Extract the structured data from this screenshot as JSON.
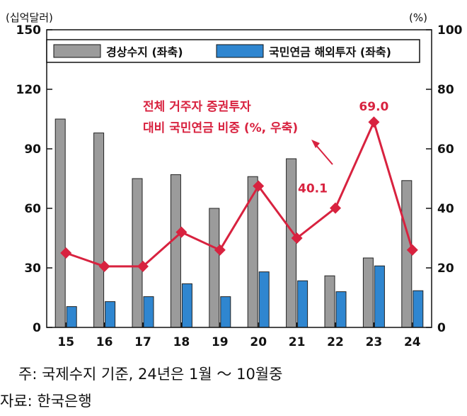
{
  "chart_data": {
    "type": "bar+line",
    "categories": [
      "15",
      "16",
      "17",
      "18",
      "19",
      "20",
      "21",
      "22",
      "23",
      "24"
    ],
    "series": [
      {
        "name": "경상수지 (좌축)",
        "type": "bar",
        "axis": "left",
        "color": "#9b9b9b",
        "values": [
          105,
          98,
          75,
          77,
          60,
          76,
          85,
          26,
          35,
          74
        ]
      },
      {
        "name": "국민연금 해외투자 (좌축)",
        "type": "bar",
        "axis": "left",
        "color": "#2f86d0",
        "values": [
          10.5,
          13,
          15.5,
          22,
          15.5,
          28,
          23.5,
          18,
          31,
          18.5
        ]
      },
      {
        "name": "전체 거주자 증권투자 대비 국민연금 비중 (%, 우축)",
        "type": "line",
        "axis": "right",
        "color": "#d8223f",
        "values": [
          25,
          20.5,
          20.5,
          32,
          26,
          47.5,
          30,
          40.1,
          69.0,
          26
        ]
      }
    ],
    "left_axis": {
      "unit": "(십억달러)",
      "min": 0,
      "max": 150,
      "ticks": [
        "0",
        "30",
        "60",
        "90",
        "120",
        "150"
      ]
    },
    "right_axis": {
      "unit": "(%)",
      "min": 0,
      "max": 100,
      "ticks": [
        "0",
        "20",
        "40",
        "60",
        "80",
        "100"
      ]
    },
    "annotations": [
      {
        "text": "69.0",
        "category": "23"
      },
      {
        "text": "40.1",
        "category": "22"
      }
    ],
    "line_label": [
      "전체 거주자 증권투자",
      "대비 국민연금 비중 (%, 우축)"
    ],
    "legend_position": "top",
    "grid": false
  },
  "notes": {
    "note1": "주: 국제수지 기준, 24년은 1월 ～ 10월중",
    "source": "자료: 한국은행"
  },
  "colors": {
    "bar1": "#9b9b9b",
    "bar2": "#2f86d0",
    "line": "#d8223f"
  }
}
